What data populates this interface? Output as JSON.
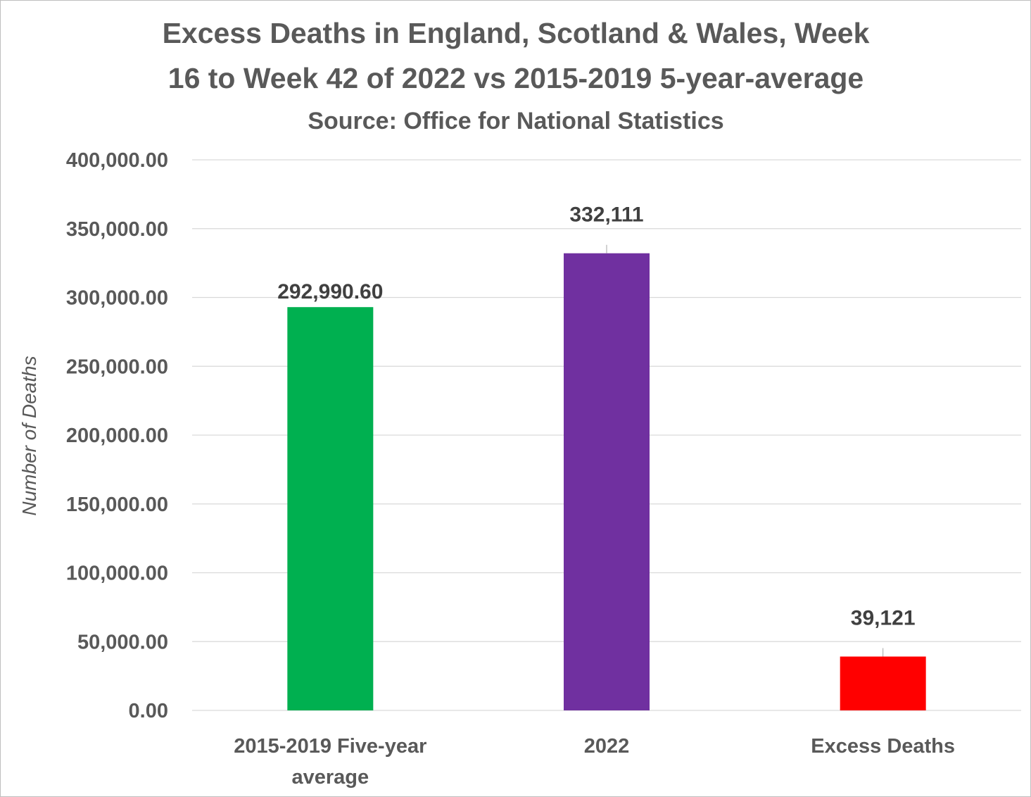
{
  "chart_data": {
    "type": "bar",
    "title": [
      "Excess Deaths in England, Scotland & Wales, Week",
      "16 to Week 42 of 2022 vs 2015-2019 5-year-average"
    ],
    "subtitle": "Source: Office for National Statistics",
    "ylabel": "Number of Deaths",
    "xlabel": "",
    "ylim": [
      0,
      400000
    ],
    "ytick_step": 50000,
    "ytick_labels": [
      "0.00",
      "50,000.00",
      "100,000.00",
      "150,000.00",
      "200,000.00",
      "250,000.00",
      "300,000.00",
      "350,000.00",
      "400,000.00"
    ],
    "grid": true,
    "legend": "none",
    "categories": [
      [
        "2015-2019 Five-year",
        "average"
      ],
      [
        "2022"
      ],
      [
        "Excess Deaths"
      ]
    ],
    "values": [
      292990.6,
      332111,
      39121
    ],
    "data_labels": [
      "292,990.60",
      "332,111",
      "39,121"
    ],
    "colors": [
      "#00b050",
      "#7030a0",
      "#ff0000"
    ],
    "gridline_color": "#d9d9d9"
  }
}
